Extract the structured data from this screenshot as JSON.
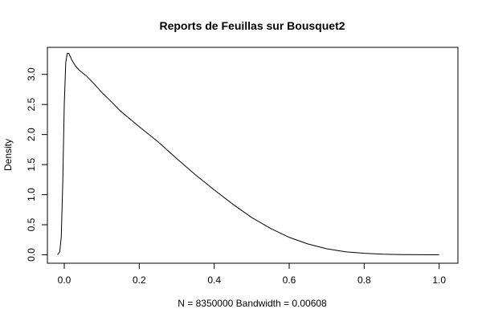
{
  "chart_data": {
    "type": "line",
    "title": "Reports de Feuillas sur Bousquet2",
    "xlabel": "N = 8350000   Bandwidth = 0.00608",
    "ylabel": "Density",
    "xlim": [
      -0.045,
      1.05
    ],
    "ylim": [
      -0.14,
      3.45
    ],
    "x_ticks": [
      "0.0",
      "0.2",
      "0.4",
      "0.6",
      "0.8",
      "1.0"
    ],
    "y_ticks": [
      "0.0",
      "0.5",
      "1.0",
      "1.5",
      "2.0",
      "2.5",
      "3.0"
    ],
    "grid": false,
    "legend": "none",
    "line_color": "#000000",
    "series": [
      {
        "x": [
          -0.018,
          -0.012,
          -0.008,
          -0.004,
          0.0,
          0.004,
          0.008,
          0.012,
          0.016,
          0.02,
          0.03,
          0.04,
          0.05,
          0.06,
          0.08,
          0.1,
          0.12,
          0.15,
          0.2,
          0.25,
          0.3,
          0.35,
          0.4,
          0.45,
          0.5,
          0.55,
          0.6,
          0.65,
          0.7,
          0.75,
          0.8,
          0.85,
          0.9,
          0.95,
          1.0
        ],
        "y": [
          0.0,
          0.05,
          0.3,
          1.2,
          2.5,
          3.2,
          3.35,
          3.35,
          3.3,
          3.24,
          3.14,
          3.07,
          3.02,
          2.97,
          2.84,
          2.7,
          2.58,
          2.39,
          2.13,
          1.88,
          1.6,
          1.33,
          1.08,
          0.84,
          0.62,
          0.44,
          0.29,
          0.18,
          0.1,
          0.05,
          0.025,
          0.01,
          0.004,
          0.001,
          0.0
        ]
      }
    ]
  }
}
